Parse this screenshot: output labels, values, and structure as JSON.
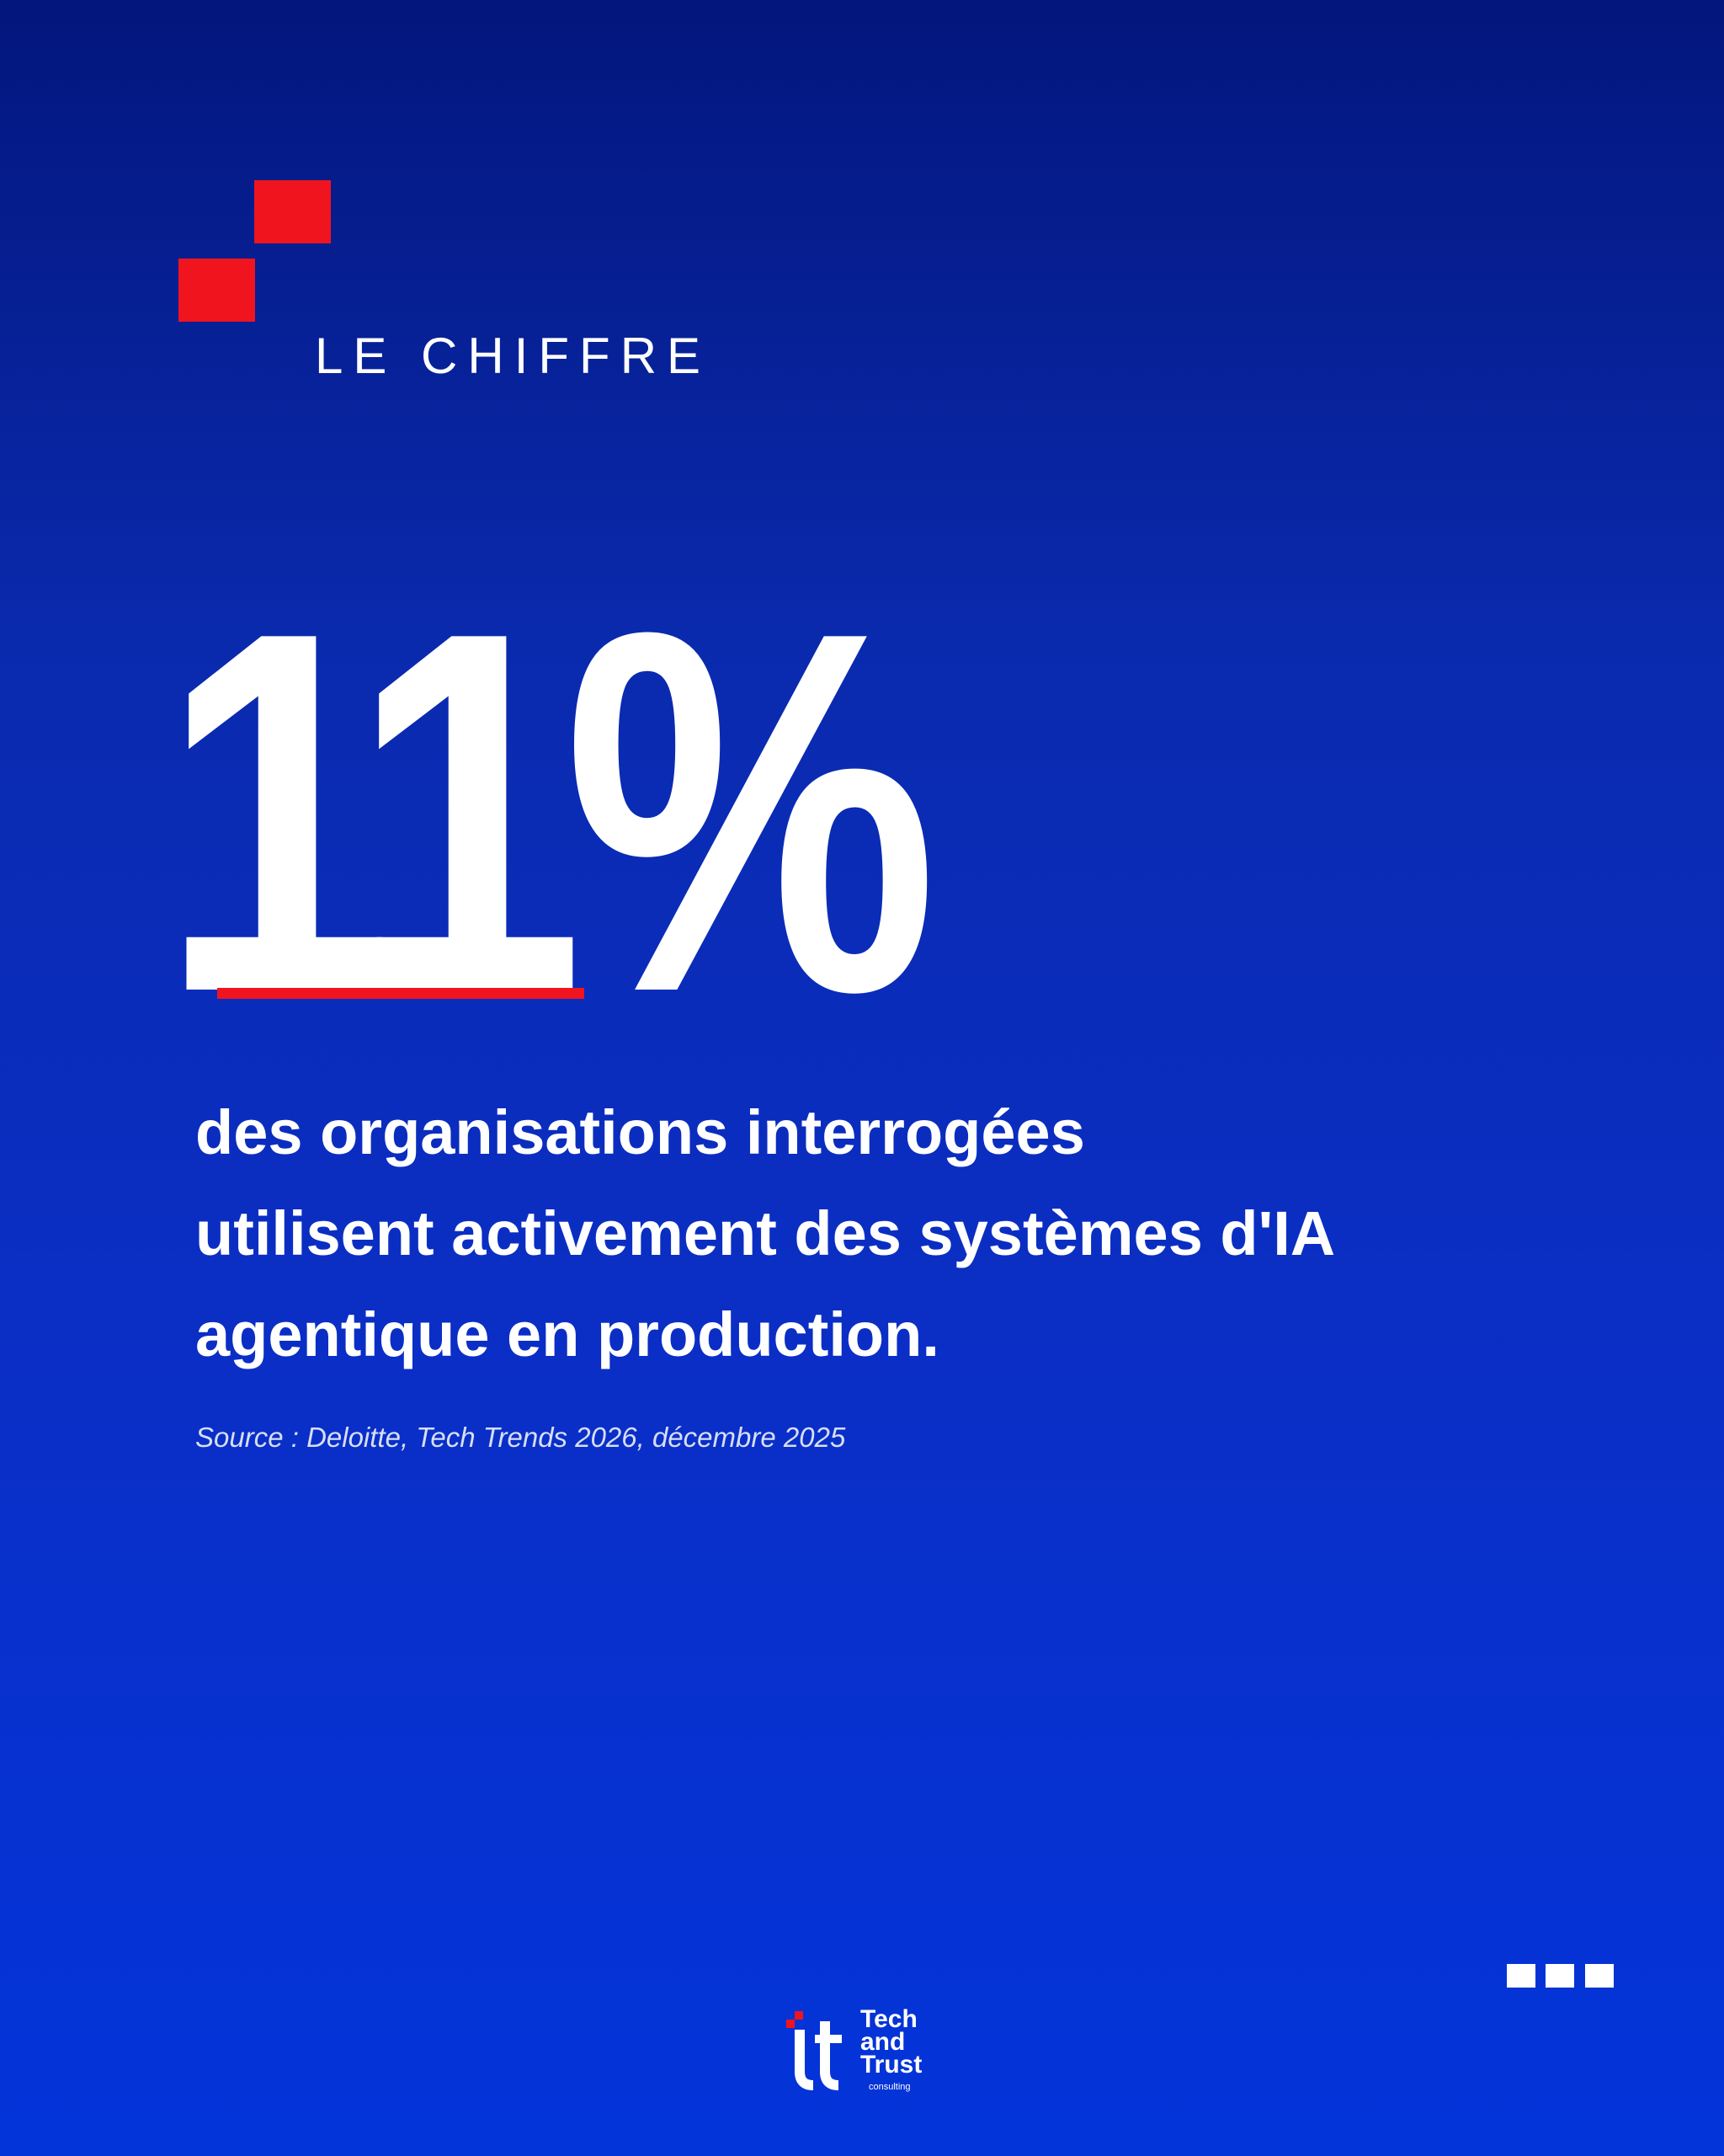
{
  "header": {
    "label": "LE CHIFFRE"
  },
  "figure": "11%",
  "statement": {
    "lines": [
      "des organisations interrogées",
      "utilisent activement des systèmes d'IA",
      "agentique en production."
    ]
  },
  "source": "Source : Deloitte, Tech Trends 2026, décembre 2025",
  "logo": {
    "line1": "Tech",
    "line2": "and",
    "line3": "Trust",
    "tagline": "consulting"
  }
}
